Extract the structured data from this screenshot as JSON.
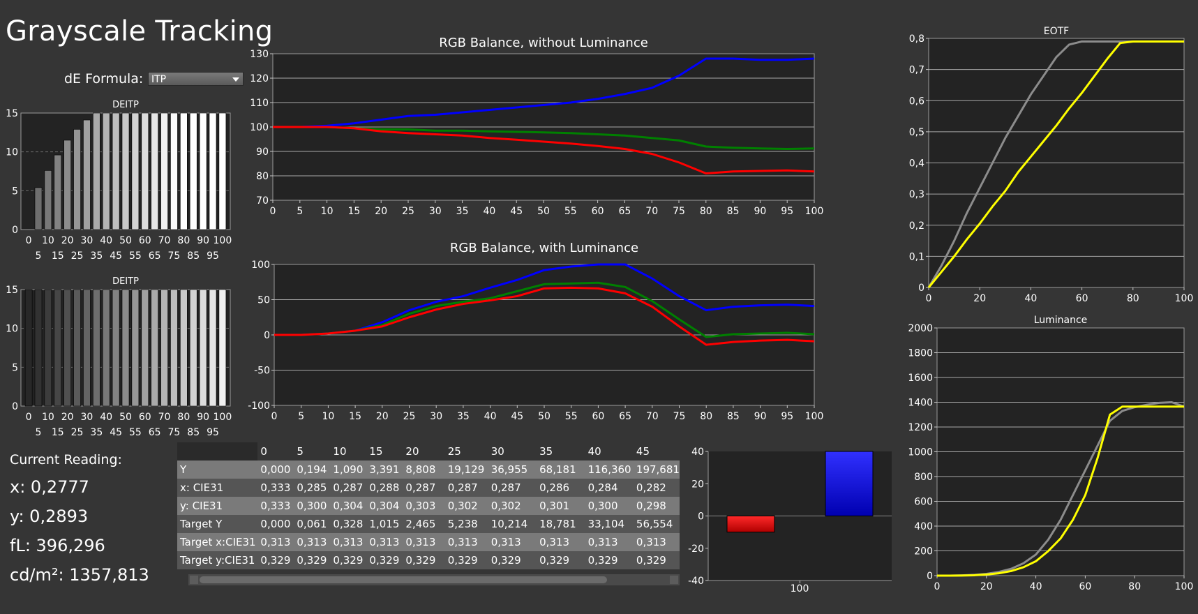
{
  "page": {
    "title": "Grayscale Tracking"
  },
  "de_formula": {
    "label": "dE Formula:",
    "value": "ITP"
  },
  "deitp_top": {
    "title": "DEITP",
    "y_ticks": [
      "0",
      "5",
      "10",
      "15"
    ],
    "x_ticks_top": [
      "0",
      "10",
      "20",
      "30",
      "40",
      "50",
      "60",
      "70",
      "80",
      "90",
      "100"
    ],
    "x_ticks_bottom": [
      "5",
      "15",
      "25",
      "35",
      "45",
      "55",
      "65",
      "75",
      "85",
      "95"
    ],
    "values": [
      0,
      5.4,
      7.6,
      9.6,
      11.5,
      12.9,
      14.1,
      15,
      15,
      15,
      15,
      15,
      15,
      15,
      15,
      15,
      15,
      15,
      15,
      15,
      15
    ]
  },
  "deitp_bottom": {
    "title": "DEITP",
    "y_ticks": [
      "0",
      "5",
      "10",
      "15"
    ],
    "x_ticks_top": [
      "0",
      "10",
      "20",
      "30",
      "40",
      "50",
      "60",
      "70",
      "80",
      "90",
      "100"
    ],
    "x_ticks_bottom": [
      "5",
      "15",
      "25",
      "35",
      "45",
      "55",
      "65",
      "75",
      "85",
      "95"
    ],
    "values": [
      15,
      15,
      15,
      15,
      15,
      15,
      15,
      15,
      15,
      15,
      15,
      15,
      15,
      15,
      15,
      15,
      15,
      15,
      15,
      15,
      15
    ]
  },
  "chart_data": [
    {
      "type": "line",
      "title": "RGB Balance, without Luminance",
      "x": [
        0,
        5,
        10,
        15,
        20,
        25,
        30,
        35,
        40,
        45,
        50,
        55,
        60,
        65,
        70,
        75,
        80,
        85,
        90,
        95,
        100
      ],
      "ylim": [
        70,
        130
      ],
      "y_ticks": [
        "70",
        "80",
        "90",
        "100",
        "110",
        "120",
        "130"
      ],
      "series": [
        {
          "color": "#0000ff",
          "values": [
            100,
            100,
            100.5,
            101.5,
            103,
            104.5,
            105,
            106,
            107,
            108,
            109,
            110,
            111.5,
            113.5,
            116,
            121,
            128,
            128,
            127.5,
            127.5,
            128
          ]
        },
        {
          "color": "#008000",
          "values": [
            100,
            100,
            100,
            99.5,
            99,
            99,
            98.5,
            98.5,
            98.2,
            98,
            97.8,
            97.5,
            97,
            96.5,
            95.5,
            94.5,
            92,
            91.5,
            91.2,
            91,
            91.2
          ]
        },
        {
          "color": "#ff0000",
          "values": [
            100,
            100,
            100,
            99.5,
            98.2,
            97.5,
            97,
            96.5,
            95.5,
            94.8,
            94,
            93.2,
            92.2,
            91,
            89,
            85.5,
            81,
            81.8,
            82,
            82.2,
            81.8
          ]
        }
      ]
    },
    {
      "type": "line",
      "title": "RGB Balance, with Luminance",
      "x": [
        0,
        5,
        10,
        15,
        20,
        25,
        30,
        35,
        40,
        45,
        50,
        55,
        60,
        65,
        70,
        75,
        80,
        85,
        90,
        95,
        100
      ],
      "ylim": [
        -100,
        100
      ],
      "y_ticks": [
        "-100",
        "-50",
        "0",
        "50",
        "100"
      ],
      "series": [
        {
          "color": "#0000ff",
          "values": [
            0,
            0,
            2,
            6,
            18,
            35,
            47,
            55,
            67,
            78,
            92,
            97,
            100,
            100,
            80,
            55,
            35,
            40,
            42,
            43,
            41
          ]
        },
        {
          "color": "#008000",
          "values": [
            0,
            0,
            2,
            6,
            14,
            30,
            41,
            47,
            52,
            62,
            72,
            73,
            74,
            68,
            48,
            22,
            -3,
            1,
            2,
            3,
            1
          ]
        },
        {
          "color": "#ff0000",
          "values": [
            0,
            0,
            2,
            6,
            12,
            25,
            36,
            44,
            49,
            55,
            66,
            67,
            66,
            59,
            40,
            12,
            -14,
            -10,
            -8,
            -7,
            -9
          ]
        }
      ]
    },
    {
      "type": "line",
      "title": "EOTF",
      "x": [
        0,
        5,
        10,
        15,
        20,
        25,
        30,
        35,
        40,
        45,
        50,
        55,
        60,
        65,
        70,
        75,
        80,
        85,
        90,
        95,
        100
      ],
      "ylim": [
        0,
        0.8
      ],
      "y_ticks": [
        "0",
        "0,1",
        "0,2",
        "0,3",
        "0,4",
        "0,5",
        "0,6",
        "0,7",
        "0,8"
      ],
      "x_ticks": [
        "0",
        "20",
        "40",
        "60",
        "80",
        "100"
      ],
      "series": [
        {
          "color": "#8c8c8c",
          "values": [
            0,
            0.07,
            0.15,
            0.24,
            0.32,
            0.4,
            0.48,
            0.55,
            0.62,
            0.68,
            0.74,
            0.78,
            0.79,
            0.79,
            0.79,
            0.79,
            0.79,
            0.79,
            0.79,
            0.79,
            0.79
          ]
        },
        {
          "color": "#ffff00",
          "values": [
            0,
            0.05,
            0.1,
            0.155,
            0.205,
            0.26,
            0.31,
            0.37,
            0.42,
            0.47,
            0.52,
            0.575,
            0.625,
            0.68,
            0.735,
            0.785,
            0.79,
            0.79,
            0.79,
            0.79,
            0.79
          ]
        }
      ]
    },
    {
      "type": "line",
      "title": "Luminance",
      "x": [
        0,
        5,
        10,
        15,
        20,
        25,
        30,
        35,
        40,
        45,
        50,
        55,
        60,
        65,
        70,
        75,
        80,
        85,
        90,
        95,
        100
      ],
      "ylim": [
        0,
        2000
      ],
      "y_ticks": [
        "0",
        "200",
        "400",
        "600",
        "800",
        "1000",
        "1200",
        "1400",
        "1600",
        "1800",
        "2000"
      ],
      "x_ticks": [
        "0",
        "20",
        "40",
        "60",
        "80",
        "100"
      ],
      "series": [
        {
          "color": "#8c8c8c",
          "values": [
            0,
            0,
            2,
            6,
            14,
            30,
            55,
            100,
            170,
            290,
            450,
            650,
            850,
            1050,
            1250,
            1330,
            1360,
            1380,
            1395,
            1400,
            1365
          ]
        },
        {
          "color": "#ffff00",
          "values": [
            0,
            0,
            1,
            3,
            9,
            19,
            37,
            68,
            116,
            198,
            300,
            450,
            650,
            950,
            1300,
            1365,
            1365,
            1365,
            1365,
            1365,
            1365
          ]
        }
      ]
    },
    {
      "type": "bar",
      "categories": [
        "100"
      ],
      "ylim": [
        -40,
        40
      ],
      "y_ticks": [
        "-40",
        "-20",
        "0",
        "20",
        "40"
      ],
      "series": [
        {
          "color": "#ff0000",
          "values": [
            -10
          ]
        },
        {
          "color": "#0000ff",
          "values": [
            40
          ]
        }
      ]
    }
  ],
  "reading": {
    "title": "Current Reading:",
    "x": "x: 0,2777",
    "y": "y: 0,2893",
    "fl": "fL: 396,296",
    "cdm2": "cd/m²: 1357,813"
  },
  "table": {
    "columns": [
      "0",
      "5",
      "10",
      "15",
      "20",
      "25",
      "30",
      "35",
      "40",
      "45"
    ],
    "rows": [
      {
        "label": "Y",
        "values": [
          "0,000",
          "0,194",
          "1,090",
          "3,391",
          "8,808",
          "19,129",
          "36,955",
          "68,181",
          "116,360",
          "197,681"
        ]
      },
      {
        "label": "x: CIE31",
        "values": [
          "0,333",
          "0,285",
          "0,287",
          "0,288",
          "0,287",
          "0,287",
          "0,287",
          "0,286",
          "0,284",
          "0,282"
        ]
      },
      {
        "label": "y: CIE31",
        "values": [
          "0,333",
          "0,300",
          "0,304",
          "0,304",
          "0,303",
          "0,302",
          "0,302",
          "0,301",
          "0,300",
          "0,298"
        ]
      },
      {
        "label": "Target Y",
        "values": [
          "0,000",
          "0,061",
          "0,328",
          "1,015",
          "2,465",
          "5,238",
          "10,214",
          "18,781",
          "33,104",
          "56,554"
        ]
      },
      {
        "label": "Target x:CIE31",
        "values": [
          "0,313",
          "0,313",
          "0,313",
          "0,313",
          "0,313",
          "0,313",
          "0,313",
          "0,313",
          "0,313",
          "0,313"
        ]
      },
      {
        "label": "Target y:CIE31",
        "values": [
          "0,329",
          "0,329",
          "0,329",
          "0,329",
          "0,329",
          "0,329",
          "0,329",
          "0,329",
          "0,329",
          "0,329"
        ]
      }
    ]
  }
}
